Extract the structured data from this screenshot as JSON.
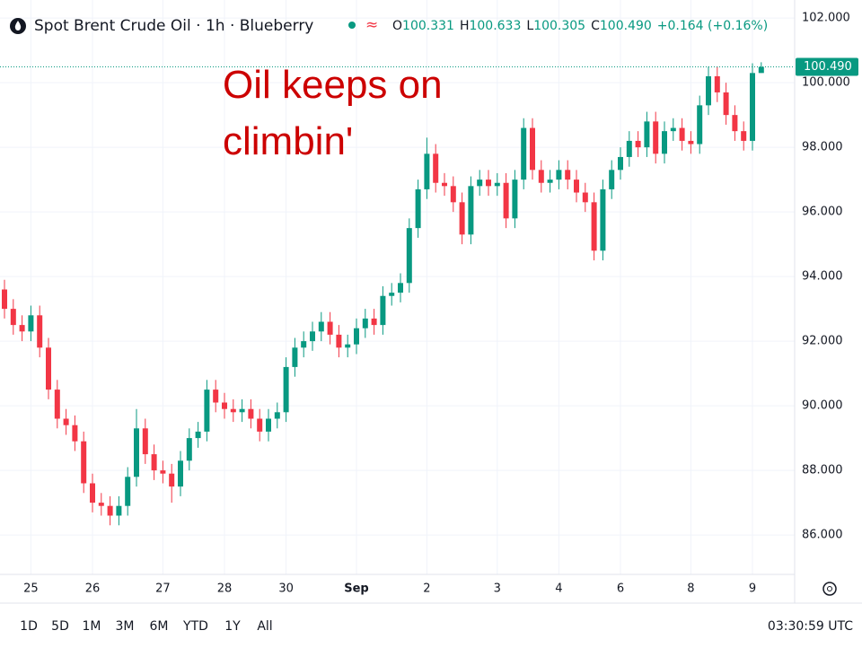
{
  "header": {
    "title": "Spot Brent Crude Oil · 1h · Blueberry",
    "ohlc": [
      {
        "label": "O",
        "value": "100.331"
      },
      {
        "label": "H",
        "value": "100.633"
      },
      {
        "label": "L",
        "value": "100.305"
      },
      {
        "label": "C",
        "value": "100.490"
      }
    ],
    "change": "+0.164 (+0.16%)"
  },
  "chart_data": {
    "type": "candlestick",
    "annotation": [
      "Oil keeps on",
      "climbin'"
    ],
    "categories": [
      null,
      null,
      null,
      "25",
      null,
      null,
      null,
      null,
      null,
      null,
      "26",
      null,
      null,
      null,
      null,
      null,
      null,
      null,
      "27",
      null,
      null,
      null,
      null,
      null,
      null,
      "28",
      null,
      null,
      null,
      null,
      null,
      null,
      "30",
      null,
      null,
      null,
      null,
      null,
      null,
      null,
      "Sep",
      null,
      null,
      null,
      null,
      null,
      null,
      null,
      "2",
      null,
      null,
      null,
      null,
      null,
      null,
      null,
      "3",
      null,
      null,
      null,
      null,
      null,
      null,
      "4",
      null,
      null,
      null,
      null,
      null,
      null,
      "6",
      null,
      null,
      null,
      null,
      null,
      null,
      null,
      "8",
      null,
      null,
      null,
      null,
      null,
      null,
      "9",
      null
    ],
    "series": {
      "up_color": "#089981",
      "down_color": "#f23645",
      "open": [
        93.6,
        93.0,
        92.5,
        92.3,
        92.8,
        91.8,
        90.5,
        89.6,
        89.4,
        88.9,
        87.6,
        87.0,
        86.9,
        86.6,
        86.9,
        87.8,
        89.3,
        88.5,
        88.0,
        87.9,
        87.5,
        88.3,
        89.0,
        89.2,
        90.5,
        90.1,
        89.9,
        89.8,
        89.9,
        89.6,
        89.2,
        89.6,
        89.8,
        91.2,
        91.8,
        92.0,
        92.3,
        92.6,
        92.2,
        91.8,
        91.9,
        92.4,
        92.7,
        92.5,
        93.4,
        93.5,
        93.8,
        95.5,
        96.7,
        97.8,
        96.9,
        96.8,
        96.3,
        95.3,
        96.8,
        97.0,
        96.8,
        96.9,
        95.8,
        97.0,
        98.6,
        97.3,
        96.9,
        97.0,
        97.3,
        97.0,
        96.6,
        96.3,
        94.8,
        96.7,
        97.3,
        97.7,
        98.2,
        98.0,
        98.8,
        97.8,
        98.5,
        98.6,
        98.2,
        98.1,
        99.3,
        100.2,
        99.7,
        99.0,
        98.5,
        98.2,
        100.3
      ],
      "high": [
        93.9,
        93.3,
        92.8,
        93.1,
        93.1,
        92.1,
        90.8,
        89.9,
        89.7,
        89.2,
        87.9,
        87.3,
        87.2,
        87.2,
        88.1,
        89.9,
        89.6,
        88.8,
        88.3,
        88.2,
        88.6,
        89.3,
        89.5,
        90.8,
        90.8,
        90.4,
        90.2,
        90.2,
        90.2,
        89.9,
        89.9,
        90.1,
        91.5,
        92.1,
        92.3,
        92.6,
        92.9,
        92.9,
        92.5,
        92.2,
        92.7,
        93.0,
        93.0,
        93.7,
        93.8,
        94.1,
        95.8,
        97.0,
        98.3,
        98.1,
        97.2,
        97.1,
        96.6,
        97.1,
        97.3,
        97.3,
        97.2,
        97.2,
        97.3,
        98.9,
        98.9,
        97.6,
        97.3,
        97.6,
        97.6,
        97.3,
        96.9,
        96.6,
        97.0,
        97.6,
        98.0,
        98.5,
        98.5,
        99.1,
        99.1,
        98.8,
        98.9,
        98.9,
        98.5,
        99.6,
        100.5,
        100.5,
        100.0,
        99.3,
        98.8,
        100.6,
        100.633
      ],
      "low": [
        92.7,
        92.2,
        92.0,
        92.0,
        91.5,
        90.2,
        89.3,
        89.1,
        88.6,
        87.3,
        86.7,
        86.6,
        86.3,
        86.3,
        86.6,
        87.5,
        88.2,
        87.7,
        87.6,
        87.0,
        87.2,
        88.0,
        88.7,
        88.9,
        89.8,
        89.6,
        89.5,
        89.5,
        89.3,
        88.9,
        88.9,
        89.3,
        89.5,
        90.9,
        91.5,
        91.7,
        92.0,
        91.9,
        91.5,
        91.5,
        91.6,
        92.1,
        92.2,
        92.2,
        93.1,
        93.2,
        93.5,
        95.2,
        96.4,
        96.6,
        96.5,
        96.0,
        95.0,
        95.0,
        96.5,
        96.5,
        96.5,
        95.5,
        95.5,
        96.7,
        97.0,
        96.6,
        96.6,
        96.7,
        96.7,
        96.3,
        96.0,
        94.5,
        94.5,
        96.4,
        97.0,
        97.4,
        97.7,
        97.7,
        97.5,
        97.5,
        98.2,
        97.9,
        97.8,
        97.8,
        99.0,
        99.4,
        98.7,
        98.2,
        97.9,
        97.9,
        100.305
      ],
      "close": [
        93.0,
        92.5,
        92.3,
        92.8,
        91.8,
        90.5,
        89.6,
        89.4,
        88.9,
        87.6,
        87.0,
        86.9,
        86.6,
        86.9,
        87.8,
        89.3,
        88.5,
        88.0,
        87.9,
        87.5,
        88.3,
        89.0,
        89.2,
        90.5,
        90.1,
        89.9,
        89.8,
        89.9,
        89.6,
        89.2,
        89.6,
        89.8,
        91.2,
        91.8,
        92.0,
        92.3,
        92.6,
        92.2,
        91.8,
        91.9,
        92.4,
        92.7,
        92.5,
        93.4,
        93.5,
        93.8,
        95.5,
        96.7,
        97.8,
        96.9,
        96.8,
        96.3,
        95.3,
        96.8,
        97.0,
        96.8,
        96.9,
        95.8,
        97.0,
        98.6,
        97.3,
        96.9,
        97.0,
        97.3,
        97.0,
        96.6,
        96.3,
        94.8,
        96.7,
        97.3,
        97.7,
        98.2,
        98.0,
        98.8,
        97.8,
        98.5,
        98.6,
        98.2,
        98.1,
        99.3,
        100.2,
        99.7,
        99.0,
        98.5,
        98.2,
        100.3,
        100.49
      ]
    },
    "last_price": {
      "value": 100.49,
      "label": "100.490",
      "color": "#089981"
    },
    "ylim": [
      84.78,
      102.56
    ],
    "yticks": [
      {
        "value": 86,
        "label": "86.000"
      },
      {
        "value": 88,
        "label": "88.000"
      },
      {
        "value": 90,
        "label": "90.000"
      },
      {
        "value": 92,
        "label": "92.000"
      },
      {
        "value": 94,
        "label": "94.000"
      },
      {
        "value": 96,
        "label": "96.000"
      },
      {
        "value": 98,
        "label": "98.000"
      },
      {
        "value": 100,
        "label": "100.000"
      },
      {
        "value": 102,
        "label": "102.000"
      }
    ],
    "grid": true
  },
  "toolbar": {
    "ranges": [
      "1D",
      "5D",
      "1M",
      "3M",
      "6M",
      "YTD",
      "1Y",
      "All"
    ],
    "clock": "03:30:59 UTC"
  }
}
